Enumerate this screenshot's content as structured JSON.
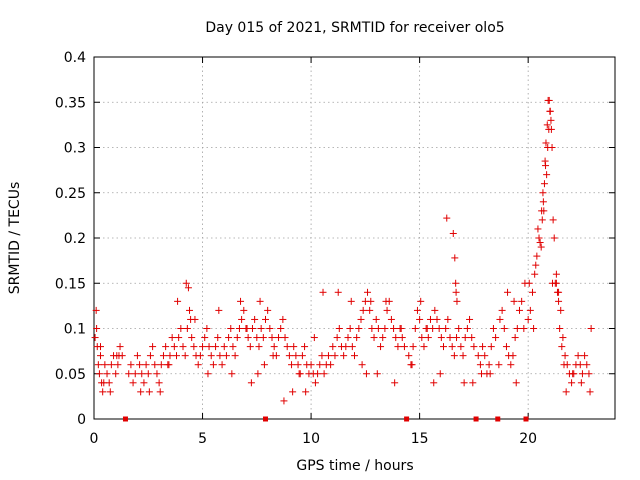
{
  "chart_data": {
    "type": "scatter",
    "title": "Day 015 of 2021, SRMTID for receiver olo5",
    "xlabel": "GPS time / hours",
    "ylabel": "SRMTID / TECUs",
    "xlim": [
      0,
      24
    ],
    "ylim": [
      0,
      0.4
    ],
    "x_ticks": [
      0,
      5,
      10,
      15,
      20
    ],
    "x_tick_labels": [
      "0",
      "5",
      "10",
      "15",
      "20"
    ],
    "y_ticks": [
      0,
      0.05,
      0.1,
      0.15,
      0.2,
      0.25,
      0.3,
      0.35,
      0.4
    ],
    "y_tick_labels": [
      "0",
      "0.05",
      "0.1",
      "0.15",
      "0.2",
      "0.25",
      "0.3",
      "0.35",
      "0.4"
    ],
    "grid": true,
    "marker": "+",
    "color": "#e00000",
    "series": [
      {
        "name": "SRMTID",
        "x": [
          0.05,
          0.1,
          0.15,
          0.2,
          0.25,
          0.3,
          0.35,
          0.4,
          0.5,
          0.6,
          0.7,
          0.8,
          0.9,
          1.0,
          1.1,
          1.2,
          1.3,
          1.6,
          1.7,
          1.8,
          1.9,
          2.0,
          2.1,
          2.2,
          2.3,
          2.4,
          2.5,
          2.6,
          2.7,
          2.8,
          2.9,
          3.0,
          3.1,
          3.2,
          3.3,
          3.4,
          3.5,
          3.6,
          3.7,
          3.8,
          3.9,
          4.0,
          4.1,
          4.2,
          4.3,
          4.4,
          4.5,
          4.6,
          4.7,
          4.8,
          4.9,
          5.0,
          5.1,
          5.2,
          5.3,
          5.4,
          5.5,
          5.6,
          5.7,
          5.8,
          5.9,
          6.0,
          6.1,
          6.2,
          6.3,
          6.4,
          6.5,
          6.6,
          6.7,
          6.8,
          6.9,
          7.0,
          7.1,
          7.2,
          7.3,
          7.4,
          7.5,
          7.6,
          7.7,
          7.8,
          7.9,
          8.0,
          8.1,
          8.2,
          8.3,
          8.4,
          8.5,
          8.6,
          8.7,
          8.8,
          8.9,
          9.0,
          9.1,
          9.2,
          9.3,
          9.4,
          9.5,
          9.6,
          9.7,
          9.8,
          9.9,
          10.0,
          10.1,
          10.2,
          10.3,
          10.4,
          10.5,
          10.6,
          10.7,
          10.8,
          10.9,
          11.0,
          11.1,
          11.2,
          11.3,
          11.4,
          11.5,
          11.6,
          11.7,
          11.8,
          11.9,
          12.0,
          12.1,
          12.2,
          12.3,
          12.4,
          12.5,
          12.6,
          12.7,
          12.8,
          12.9,
          13.0,
          13.1,
          13.2,
          13.3,
          13.4,
          13.5,
          13.6,
          13.7,
          13.8,
          13.9,
          14.0,
          14.1,
          14.2,
          14.3,
          14.5,
          14.6,
          14.7,
          14.8,
          14.9,
          15.0,
          15.1,
          15.2,
          15.3,
          15.4,
          15.5,
          15.6,
          15.7,
          15.8,
          15.9,
          16.0,
          16.1,
          16.2,
          16.3,
          16.4,
          16.5,
          16.6,
          16.7,
          16.8,
          16.9,
          17.0,
          17.1,
          17.2,
          17.3,
          17.4,
          17.5,
          17.7,
          17.8,
          17.9,
          18.0,
          18.1,
          18.2,
          18.3,
          18.4,
          18.5,
          18.7,
          18.8,
          18.9,
          19.0,
          19.1,
          19.2,
          19.3,
          19.4,
          19.5,
          19.6,
          19.7,
          19.8,
          20.0,
          20.1,
          20.2,
          20.3,
          20.4,
          20.5,
          20.6,
          20.65,
          20.7,
          20.75,
          20.8,
          20.85,
          20.9,
          20.95,
          21.0,
          21.05,
          21.1,
          21.15,
          21.2,
          21.3,
          21.4,
          21.5,
          21.6,
          21.7,
          21.8,
          21.9,
          22.0,
          22.1,
          22.2,
          22.3,
          22.4,
          22.5,
          22.6,
          22.7,
          22.8,
          22.9,
          0.12,
          0.3,
          0.45,
          0.75,
          1.05,
          1.15,
          2.15,
          2.55,
          3.05,
          3.45,
          3.85,
          4.25,
          4.35,
          4.45,
          4.65,
          5.25,
          5.75,
          6.35,
          6.75,
          7.05,
          7.25,
          7.55,
          7.65,
          7.85,
          8.25,
          8.75,
          9.15,
          9.45,
          9.75,
          10.15,
          10.55,
          11.25,
          11.85,
          12.35,
          12.55,
          12.75,
          13.05,
          13.45,
          13.85,
          14.15,
          14.65,
          15.05,
          15.35,
          15.65,
          15.95,
          16.25,
          16.55,
          16.62,
          16.66,
          16.68,
          16.72,
          17.05,
          17.45,
          17.85,
          18.25,
          18.65,
          19.05,
          19.35,
          19.45,
          19.85,
          20.05,
          20.25,
          20.35,
          20.45,
          20.55,
          20.62,
          20.68,
          20.72,
          20.78,
          20.82,
          20.88,
          20.92,
          20.97,
          21.02,
          21.07,
          21.12,
          21.25,
          21.35,
          21.45,
          21.55,
          21.65,
          21.75,
          22.05,
          22.45,
          22.85,
          21.3,
          21.4
        ],
        "y": [
          0.09,
          0.12,
          0.08,
          0.06,
          0.05,
          0.07,
          0.04,
          0.03,
          0.06,
          0.05,
          0.04,
          0.06,
          0.07,
          0.05,
          0.06,
          0.08,
          0.07,
          0.05,
          0.06,
          0.04,
          0.05,
          0.07,
          0.06,
          0.05,
          0.04,
          0.06,
          0.05,
          0.07,
          0.08,
          0.06,
          0.05,
          0.04,
          0.06,
          0.07,
          0.08,
          0.06,
          0.07,
          0.09,
          0.08,
          0.07,
          0.09,
          0.1,
          0.08,
          0.07,
          0.1,
          0.12,
          0.09,
          0.08,
          0.07,
          0.06,
          0.07,
          0.08,
          0.09,
          0.1,
          0.08,
          0.07,
          0.06,
          0.08,
          0.09,
          0.07,
          0.06,
          0.08,
          0.07,
          0.09,
          0.1,
          0.08,
          0.07,
          0.09,
          0.1,
          0.11,
          0.12,
          0.1,
          0.09,
          0.08,
          0.1,
          0.11,
          0.09,
          0.08,
          0.1,
          0.09,
          0.11,
          0.12,
          0.1,
          0.09,
          0.08,
          0.07,
          0.09,
          0.1,
          0.11,
          0.09,
          0.08,
          0.07,
          0.06,
          0.08,
          0.07,
          0.06,
          0.05,
          0.07,
          0.08,
          0.06,
          0.05,
          0.06,
          0.05,
          0.04,
          0.05,
          0.06,
          0.07,
          0.05,
          0.06,
          0.07,
          0.06,
          0.08,
          0.07,
          0.09,
          0.1,
          0.08,
          0.07,
          0.08,
          0.09,
          0.1,
          0.08,
          0.07,
          0.09,
          0.1,
          0.11,
          0.12,
          0.13,
          0.14,
          0.12,
          0.1,
          0.09,
          0.11,
          0.1,
          0.08,
          0.09,
          0.1,
          0.12,
          0.13,
          0.11,
          0.1,
          0.09,
          0.08,
          0.1,
          0.09,
          0.08,
          0.07,
          0.06,
          0.08,
          0.1,
          0.12,
          0.11,
          0.09,
          0.08,
          0.1,
          0.09,
          0.11,
          0.1,
          0.12,
          0.11,
          0.1,
          0.09,
          0.08,
          0.1,
          0.11,
          0.09,
          0.08,
          0.07,
          0.09,
          0.1,
          0.08,
          0.07,
          0.09,
          0.1,
          0.11,
          0.09,
          0.08,
          0.07,
          0.06,
          0.08,
          0.07,
          0.05,
          0.06,
          0.08,
          0.1,
          0.09,
          0.11,
          0.12,
          0.1,
          0.08,
          0.07,
          0.06,
          0.07,
          0.09,
          0.1,
          0.12,
          0.13,
          0.1,
          0.11,
          0.12,
          0.14,
          0.16,
          0.18,
          0.2,
          0.19,
          0.22,
          0.24,
          0.26,
          0.28,
          0.27,
          0.3,
          0.32,
          0.34,
          0.33,
          0.3,
          0.22,
          0.2,
          0.15,
          0.13,
          0.12,
          0.09,
          0.07,
          0.06,
          0.05,
          0.04,
          0.05,
          0.06,
          0.07,
          0.06,
          0.05,
          0.07,
          0.06,
          0.05,
          0.1,
          0.1,
          0.08,
          0.04,
          0.03,
          0.07,
          0.07,
          0.03,
          0.03,
          0.03,
          0.06,
          0.13,
          0.15,
          0.145,
          0.11,
          0.11,
          0.05,
          0.12,
          0.05,
          0.13,
          0.1,
          0.04,
          0.05,
          0.13,
          0.06,
          0.07,
          0.02,
          0.03,
          0.05,
          0.03,
          0.09,
          0.14,
          0.14,
          0.13,
          0.06,
          0.05,
          0.13,
          0.05,
          0.13,
          0.04,
          0.1,
          0.06,
          0.13,
          0.1,
          0.04,
          0.05,
          0.222,
          0.205,
          0.178,
          0.15,
          0.14,
          0.13,
          0.04,
          0.04,
          0.05,
          0.05,
          0.06,
          0.14,
          0.13,
          0.04,
          0.15,
          0.15,
          0.1,
          0.17,
          0.21,
          0.195,
          0.23,
          0.25,
          0.23,
          0.285,
          0.305,
          0.325,
          0.352,
          0.352,
          0.34,
          0.32,
          0.15,
          0.15,
          0.14,
          0.1,
          0.08,
          0.06,
          0.03,
          0.05,
          0.04,
          0.03,
          0.16,
          0.14
        ]
      }
    ],
    "gap_markers_x": [
      1.45,
      7.9,
      14.4,
      17.6,
      18.6,
      19.9
    ]
  }
}
